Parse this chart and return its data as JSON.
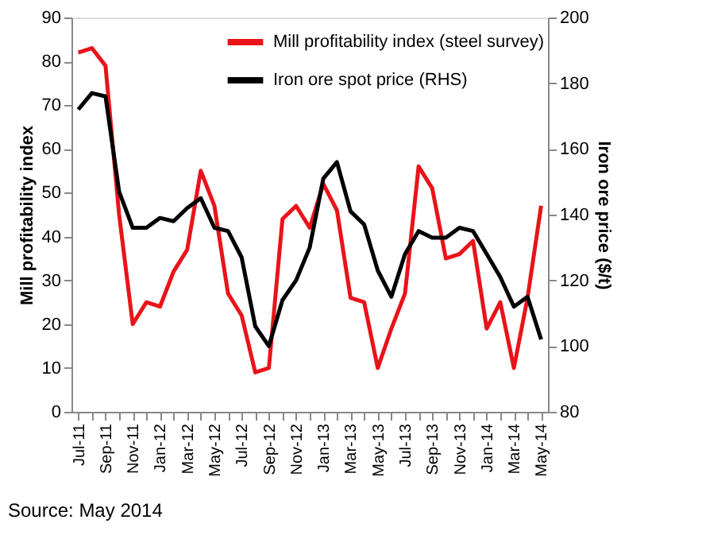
{
  "chart_data": {
    "type": "line",
    "categories": [
      "Jul-11",
      null,
      "Sep-11",
      null,
      "Nov-11",
      null,
      "Jan-12",
      null,
      "Mar-12",
      null,
      "May-12",
      null,
      "Jul-12",
      null,
      "Sep-12",
      null,
      "Nov-12",
      null,
      "Jan-13",
      null,
      "Mar-13",
      null,
      "May-13",
      null,
      "Jul-13",
      null,
      "Sep-13",
      null,
      "Nov-13",
      null,
      "Jan-14",
      null,
      "Mar-14",
      null,
      "May-14"
    ],
    "series": [
      {
        "name": "Mill profitability index (steel survey)",
        "color": "#e8141a",
        "values": [
          82,
          83,
          79,
          45,
          20,
          25,
          24,
          32,
          37,
          55,
          47,
          27,
          22,
          9,
          10,
          44,
          47,
          42,
          52,
          46,
          26,
          25,
          10,
          19,
          27,
          56,
          51,
          35,
          36,
          39,
          19,
          25,
          10,
          26,
          47
        ]
      },
      {
        "name": "Iron ore spot price (RHS)",
        "color": "#000000",
        "axis": "y2",
        "values": [
          172,
          177,
          176,
          147,
          136,
          136,
          139,
          138,
          142,
          145,
          136,
          135,
          127,
          106,
          100,
          114,
          120,
          130,
          151,
          156,
          141,
          137,
          123,
          115,
          128,
          135,
          133,
          133,
          136,
          135,
          128,
          121,
          112,
          115,
          102
        ]
      }
    ],
    "ylabel": "Mill profitability index",
    "y2label": "Iron ore price ($/t)",
    "ylim": [
      0,
      90
    ],
    "yticks": [
      0,
      10,
      20,
      30,
      40,
      50,
      60,
      70,
      80,
      90
    ],
    "y2lim": [
      80,
      200
    ],
    "y2ticks": [
      80,
      100,
      120,
      140,
      160,
      180,
      200
    ],
    "legend": "top right",
    "grid": false,
    "line_style": "solid",
    "marker": "none",
    "annotations": [
      "Source: May 2014"
    ]
  }
}
